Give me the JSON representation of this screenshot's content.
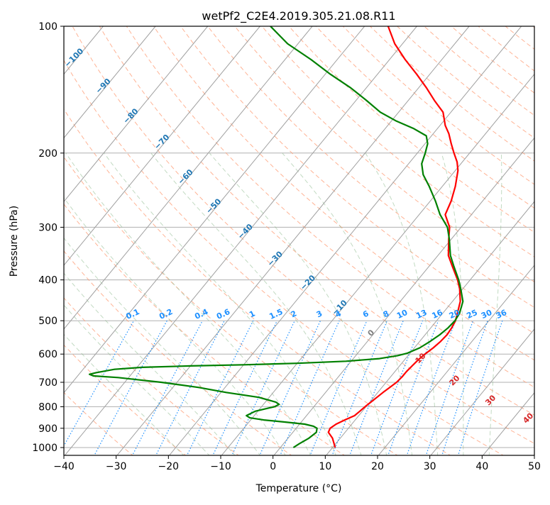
{
  "chart_data": {
    "type": "skew-t",
    "title": "wetPf2_C2E4.2019.305.21.08.R11",
    "xlabel": "Temperature (°C)",
    "ylabel": "Pressure (hPa)",
    "xlim": [
      -40,
      50
    ],
    "ylim": [
      1050,
      100
    ],
    "y_scale": "log",
    "grid": true,
    "x_ticks": [
      -40,
      -30,
      -20,
      -10,
      0,
      10,
      20,
      30,
      40,
      50
    ],
    "x_tick_labels": [
      "−40",
      "−30",
      "−20",
      "−10",
      "0",
      "10",
      "20",
      "30",
      "40",
      "50"
    ],
    "y_ticks": [
      1000,
      900,
      800,
      700,
      600,
      500,
      400,
      300,
      200,
      100
    ],
    "y_tick_labels": [
      "1000",
      "900",
      "800",
      "700",
      "600",
      "500",
      "400",
      "300",
      "200",
      "100"
    ],
    "colors": {
      "temperature": "#ff0000",
      "dewpoint": "#008000",
      "isotherm": "#a0a0a0",
      "dry_adiabat": "#ffa07a",
      "moist_adiabat": "#8fbc8f",
      "mixing_ratio": "#1e90ff",
      "moist_adiabat_label": "#d62728",
      "isotherm_label": "#1f77b4",
      "zero_label": "#808080"
    },
    "series": [
      {
        "name": "temperature",
        "points": [
          [
            10.5,
            1000
          ],
          [
            8.5,
            950
          ],
          [
            6.8,
            920
          ],
          [
            6.5,
            900
          ],
          [
            7.0,
            880
          ],
          [
            8.0,
            860
          ],
          [
            9.2,
            840
          ],
          [
            9.5,
            820
          ],
          [
            9.8,
            800
          ],
          [
            10.2,
            780
          ],
          [
            10.6,
            760
          ],
          [
            11.0,
            740
          ],
          [
            11.5,
            720
          ],
          [
            12.0,
            700
          ],
          [
            12.2,
            680
          ],
          [
            12.2,
            660
          ],
          [
            12.4,
            640
          ],
          [
            12.6,
            620
          ],
          [
            13.0,
            600
          ],
          [
            13.6,
            580
          ],
          [
            14.0,
            560
          ],
          [
            14.2,
            540
          ],
          [
            14.0,
            520
          ],
          [
            13.6,
            500
          ],
          [
            12.8,
            480
          ],
          [
            11.5,
            450
          ],
          [
            9.4,
            420
          ],
          [
            7.6,
            400
          ],
          [
            4.3,
            370
          ],
          [
            2.0,
            350
          ],
          [
            -0.5,
            320
          ],
          [
            -2.2,
            300
          ],
          [
            -5.0,
            280
          ],
          [
            -6.0,
            260
          ],
          [
            -7.5,
            240
          ],
          [
            -9.5,
            220
          ],
          [
            -11.0,
            210
          ],
          [
            -13.0,
            200
          ],
          [
            -15.0,
            190
          ],
          [
            -17.0,
            180
          ],
          [
            -19.0,
            172
          ],
          [
            -21.5,
            160
          ],
          [
            -25.0,
            150
          ],
          [
            -28.5,
            140
          ],
          [
            -32.5,
            130
          ],
          [
            -37.0,
            120
          ],
          [
            -41.5,
            110
          ],
          [
            -45.5,
            100
          ]
        ]
      },
      {
        "name": "dewpoint",
        "points": [
          [
            2.5,
            1000
          ],
          [
            3.0,
            980
          ],
          [
            4.0,
            950
          ],
          [
            4.5,
            920
          ],
          [
            4.0,
            900
          ],
          [
            3.0,
            890
          ],
          [
            1.0,
            880
          ],
          [
            -3.0,
            870
          ],
          [
            -7.5,
            860
          ],
          [
            -10.5,
            850
          ],
          [
            -11.5,
            840
          ],
          [
            -10.5,
            820
          ],
          [
            -7.5,
            800
          ],
          [
            -7.0,
            790
          ],
          [
            -8.0,
            780
          ],
          [
            -12.0,
            760
          ],
          [
            -19.0,
            740
          ],
          [
            -25.0,
            720
          ],
          [
            -29.0,
            710
          ],
          [
            -33.0,
            700
          ],
          [
            -38.0,
            690
          ],
          [
            -42.0,
            682
          ],
          [
            -47.0,
            676
          ],
          [
            -48.0,
            670
          ],
          [
            -47.0,
            664
          ],
          [
            -44.0,
            652
          ],
          [
            -39.0,
            645
          ],
          [
            -30.0,
            640
          ],
          [
            -20.0,
            636
          ],
          [
            -10.0,
            631
          ],
          [
            -1.0,
            624
          ],
          [
            5.0,
            615
          ],
          [
            8.0,
            605
          ],
          [
            9.5,
            597
          ],
          [
            11.0,
            580
          ],
          [
            12.0,
            560
          ],
          [
            12.8,
            540
          ],
          [
            13.3,
            520
          ],
          [
            13.5,
            500
          ],
          [
            13.2,
            480
          ],
          [
            12.0,
            450
          ],
          [
            9.6,
            420
          ],
          [
            7.8,
            400
          ],
          [
            4.6,
            370
          ],
          [
            2.4,
            350
          ],
          [
            -0.4,
            320
          ],
          [
            -2.6,
            300
          ],
          [
            -6.0,
            280
          ],
          [
            -9.0,
            260
          ],
          [
            -12.5,
            240
          ],
          [
            -15.5,
            225
          ],
          [
            -17.5,
            212
          ],
          [
            -18.5,
            200
          ],
          [
            -19.5,
            190
          ],
          [
            -21.0,
            182
          ],
          [
            -24.5,
            175
          ],
          [
            -29.0,
            168
          ],
          [
            -33.5,
            160
          ],
          [
            -38.0,
            150
          ],
          [
            -43.0,
            140
          ],
          [
            -49.0,
            130
          ],
          [
            -55.0,
            120
          ],
          [
            -62.0,
            110
          ],
          [
            -68.0,
            100
          ]
        ]
      }
    ],
    "isotherm_labels": [
      "−100",
      "−90",
      "−80",
      "−70",
      "−60",
      "−50",
      "−40",
      "−30",
      "−20",
      "−10",
      "0"
    ],
    "isotherm_label_values": [
      -100,
      -90,
      -80,
      -70,
      -60,
      -50,
      -40,
      -30,
      -20,
      -10,
      0
    ],
    "mixing_ratio_labels": [
      "0.1",
      "0.2",
      "0.4",
      "0.6",
      "1",
      "1.5",
      "2",
      "3",
      "4",
      "6",
      "8",
      "10",
      "13",
      "16",
      "20",
      "25",
      "30",
      "36"
    ],
    "mixing_ratio_values": [
      0.1,
      0.2,
      0.4,
      0.6,
      1,
      1.5,
      2,
      3,
      4,
      6,
      8,
      10,
      13,
      16,
      20,
      25,
      30,
      36
    ],
    "moist_adiabat_labels": [
      "10",
      "20",
      "30",
      "40"
    ],
    "moist_adiabat_label_values": [
      10,
      20,
      30,
      40
    ]
  }
}
